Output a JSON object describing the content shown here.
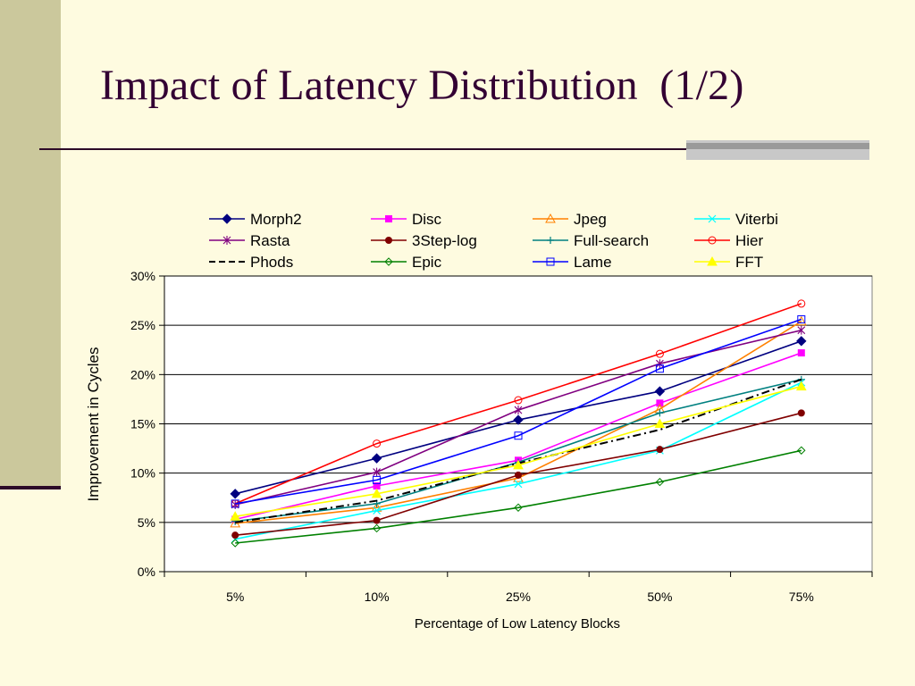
{
  "slide": {
    "title": "Impact of Latency Distribution  (1/2)"
  },
  "chart_data": {
    "type": "line",
    "categories": [
      "5%",
      "10%",
      "25%",
      "50%",
      "75%"
    ],
    "xlabel": "Percentage of Low Latency Blocks",
    "ylabel": "Improvement in Cycles",
    "ylim": [
      0,
      30
    ],
    "yticks": [
      "0%",
      "5%",
      "10%",
      "15%",
      "20%",
      "25%",
      "30%"
    ],
    "grid": true,
    "legend_position": "top",
    "series": [
      {
        "name": "Morph2",
        "color": "#000080",
        "marker": "diamond-filled",
        "dash": "",
        "values": [
          7.9,
          11.5,
          15.4,
          18.3,
          23.4
        ]
      },
      {
        "name": "Disc",
        "color": "#ff00ff",
        "marker": "square-filled",
        "dash": "",
        "values": [
          5.3,
          8.7,
          11.3,
          17.1,
          22.2
        ]
      },
      {
        "name": "Jpeg",
        "color": "#ff8000",
        "marker": "triangle-open",
        "dash": "",
        "values": [
          4.9,
          6.5,
          9.5,
          16.5,
          25.4
        ]
      },
      {
        "name": "Viterbi",
        "color": "#00ffff",
        "marker": "x",
        "dash": "",
        "values": [
          3.3,
          6.2,
          8.9,
          12.3,
          19.2
        ]
      },
      {
        "name": "Rasta",
        "color": "#800080",
        "marker": "star",
        "dash": "",
        "values": [
          6.8,
          10.1,
          16.4,
          21.1,
          24.5
        ]
      },
      {
        "name": "3Step-log",
        "color": "#800000",
        "marker": "circle-filled",
        "dash": "",
        "values": [
          3.7,
          5.2,
          9.8,
          12.4,
          16.1
        ]
      },
      {
        "name": "Full-search",
        "color": "#008080",
        "marker": "plus",
        "dash": "",
        "values": [
          5.1,
          6.9,
          11.1,
          16.1,
          19.5
        ]
      },
      {
        "name": "Hier",
        "color": "#ff0000",
        "marker": "circle-open",
        "dash": "",
        "values": [
          6.9,
          13.0,
          17.4,
          22.1,
          27.2
        ]
      },
      {
        "name": "Phods",
        "color": "#000000",
        "marker": "none",
        "dash": "9 4 2 4",
        "values": [
          5.0,
          7.2,
          11.0,
          14.4,
          19.5
        ]
      },
      {
        "name": "Epic",
        "color": "#008000",
        "marker": "diamond-open",
        "dash": "",
        "values": [
          2.9,
          4.4,
          6.5,
          9.1,
          12.3
        ]
      },
      {
        "name": "Lame",
        "color": "#0000ff",
        "marker": "square-open",
        "dash": "",
        "values": [
          6.9,
          9.3,
          13.8,
          20.6,
          25.6
        ]
      },
      {
        "name": "FFT",
        "color": "#ffff00",
        "marker": "triangle-filled",
        "dash": "",
        "values": [
          5.6,
          7.9,
          10.8,
          15.0,
          18.8
        ]
      }
    ]
  }
}
